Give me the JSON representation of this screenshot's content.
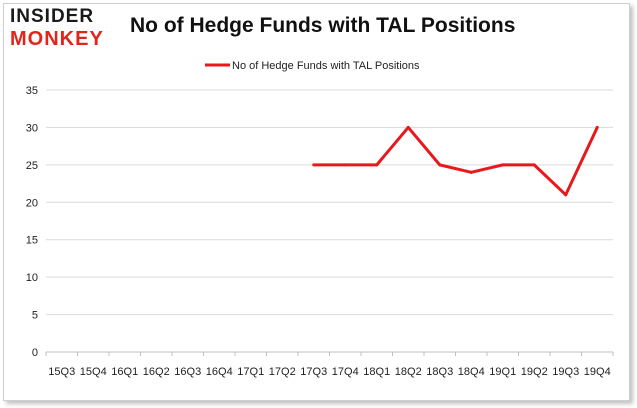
{
  "brand": {
    "logo_top": "INSIDER",
    "logo_bottom": "MONKEY"
  },
  "colors": {
    "series": "#e8191c",
    "grid": "#d9d9d9",
    "axis": "#bfbfbf"
  },
  "chart_data": {
    "type": "line",
    "title": "No of Hedge Funds with TAL Positions",
    "xlabel": "",
    "ylabel": "",
    "legend_position": "top-center",
    "grid": true,
    "categories": [
      "15Q3",
      "15Q4",
      "16Q1",
      "16Q2",
      "16Q3",
      "16Q4",
      "17Q1",
      "17Q2",
      "17Q3",
      "17Q4",
      "18Q1",
      "18Q2",
      "18Q3",
      "18Q4",
      "19Q1",
      "19Q2",
      "19Q3",
      "19Q4"
    ],
    "yticks": [
      0,
      5,
      10,
      15,
      20,
      25,
      30,
      35
    ],
    "ylim": [
      0,
      35
    ],
    "series": [
      {
        "name": "No of Hedge Funds with TAL Positions",
        "values": [
          null,
          null,
          null,
          null,
          null,
          null,
          null,
          null,
          25,
          25,
          25,
          30,
          25,
          24,
          25,
          25,
          21,
          30
        ]
      }
    ]
  }
}
